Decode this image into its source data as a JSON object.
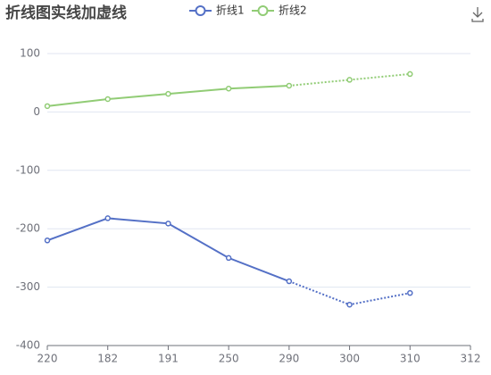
{
  "chart_data": {
    "type": "line",
    "title": "折线图实线加虚线",
    "categories": [
      "220",
      "182",
      "191",
      "250",
      "290",
      "300",
      "310",
      "312"
    ],
    "series": [
      {
        "name": "折线1",
        "color": "#5470c6",
        "values": [
          -220,
          -182,
          -191,
          -250,
          -290,
          -330,
          -310,
          null
        ],
        "dashed_from": 4
      },
      {
        "name": "折线2",
        "color": "#91cc75",
        "values": [
          10,
          22,
          31,
          40,
          45,
          55,
          65,
          null
        ],
        "dashed_from": 4
      }
    ],
    "ylim": [
      -400,
      100
    ],
    "yticks": [
      -400,
      -300,
      -200,
      -100,
      0,
      100
    ],
    "grid": true,
    "legend": "top"
  }
}
